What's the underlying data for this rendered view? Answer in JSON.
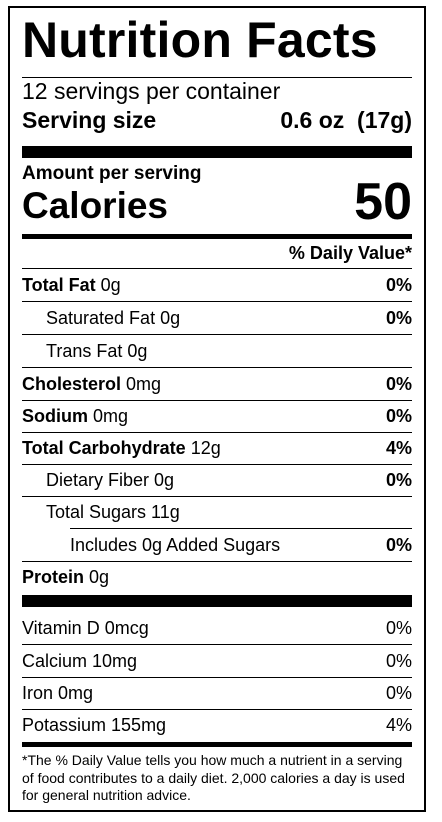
{
  "title": "Nutrition Facts",
  "servings_per_container": "12 servings per container",
  "serving_size": {
    "label": "Serving size",
    "value": "0.6 oz  (17g)"
  },
  "amount_per_serving": "Amount per serving",
  "calories": {
    "label": "Calories",
    "value": "50"
  },
  "daily_value_header": "% Daily Value*",
  "nutrients": [
    {
      "name": "Total Fat",
      "amount": " 0g",
      "dv": "0%"
    },
    {
      "name": "Saturated Fat 0g",
      "amount": "",
      "dv": "0%"
    },
    {
      "name": "Trans Fat 0g",
      "amount": "",
      "dv": ""
    },
    {
      "name": "Cholesterol",
      "amount": " 0mg",
      "dv": "0%"
    },
    {
      "name": "Sodium",
      "amount": " 0mg",
      "dv": "0%"
    },
    {
      "name": "Total Carbohydrate",
      "amount": " 12g",
      "dv": "4%"
    },
    {
      "name": "Dietary Fiber 0g",
      "amount": "",
      "dv": "0%"
    },
    {
      "name": "Total Sugars 11g",
      "amount": "",
      "dv": ""
    },
    {
      "name": "Includes 0g Added Sugars",
      "amount": "",
      "dv": "0%"
    },
    {
      "name": "Protein",
      "amount": " 0g",
      "dv": ""
    }
  ],
  "vitamins": [
    {
      "name": "Vitamin D 0mcg",
      "dv": "0%"
    },
    {
      "name": "Calcium 10mg",
      "dv": "0%"
    },
    {
      "name": "Iron 0mg",
      "dv": "0%"
    },
    {
      "name": "Potassium 155mg",
      "dv": "4%"
    }
  ],
  "footnote": "*The % Daily Value tells you how much a nutrient in a serving of food contributes to a daily diet. 2,000 calories a day is used for general nutrition advice."
}
